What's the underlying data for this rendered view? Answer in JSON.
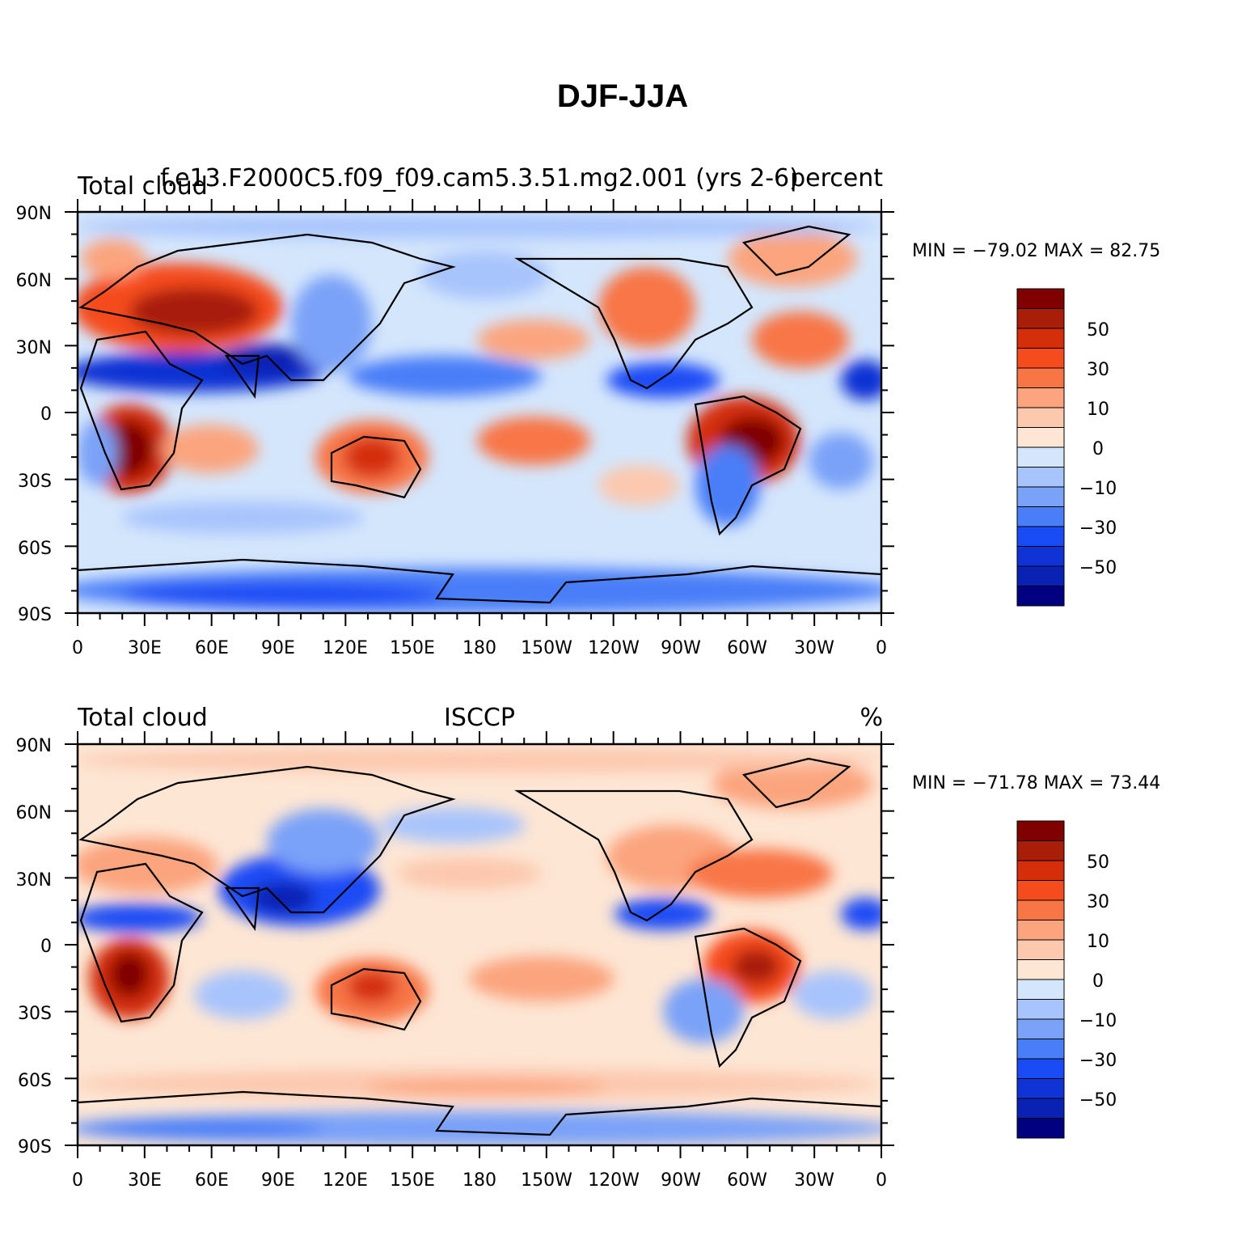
{
  "main_title": "DJF-JJA",
  "colorbar": {
    "colors": [
      "#000080",
      "#0a22b4",
      "#0f33d4",
      "#1a4cf5",
      "#4a7ef8",
      "#7aa2f8",
      "#a8c4fc",
      "#d4e6fc",
      "#fde6d4",
      "#fcc8ae",
      "#fba47e",
      "#f87646",
      "#f54c1e",
      "#d42e0a",
      "#a81e08",
      "#800000"
    ],
    "labels": [
      "50",
      "30",
      "10",
      "0",
      "−10",
      "−30",
      "−50"
    ]
  },
  "axes": {
    "lat_labels": [
      "90N",
      "60N",
      "30N",
      "0",
      "30S",
      "60S",
      "90S"
    ],
    "lon_labels": [
      "0",
      "30E",
      "60E",
      "90E",
      "120E",
      "150E",
      "180",
      "150W",
      "120W",
      "90W",
      "60W",
      "30W",
      "0"
    ]
  },
  "panels": [
    {
      "id": "model",
      "left_title": "Total cloud",
      "center_title": "f.e13.F2000C5.f09_f09.cam5.3.51.mg2.001 (yrs 2-6)",
      "right_title": "percent",
      "stats": "MIN = −79.02  MAX =  82.75"
    },
    {
      "id": "obs",
      "left_title": "Total cloud",
      "center_title": "ISCCP",
      "right_title": "%",
      "stats": "MIN = −71.78  MAX =  73.44"
    }
  ]
}
